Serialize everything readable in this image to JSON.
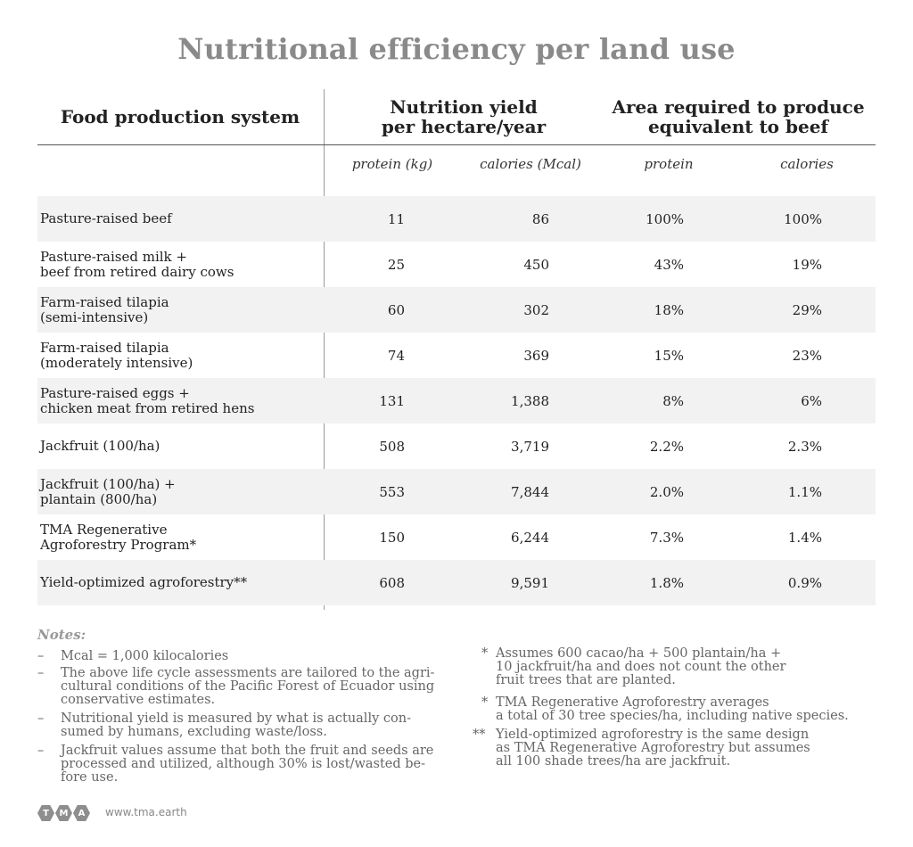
{
  "title": "Nutritional efficiency per land use",
  "headers": {
    "food": "Food production system",
    "yield": "Nutrition yield\nper hectare/year",
    "area": "Area required to produce\nequivalent to beef",
    "sub_protein": "protein (kg)",
    "sub_calories": "calories (Mcal)",
    "sub_area_protein": "protein",
    "sub_area_calories": "calories"
  },
  "rows": [
    {
      "name": "Pasture-raised beef",
      "protein": "11",
      "calories": "86",
      "area_protein": "100%",
      "area_calories": "100%"
    },
    {
      "name": "Pasture-raised milk +\nbeef from retired dairy cows",
      "protein": "25",
      "calories": "450",
      "area_protein": "43%",
      "area_calories": "19%"
    },
    {
      "name": "Farm-raised tilapia\n(semi-intensive)",
      "protein": "60",
      "calories": "302",
      "area_protein": "18%",
      "area_calories": "29%"
    },
    {
      "name": "Farm-raised tilapia\n(moderately intensive)",
      "protein": "74",
      "calories": "369",
      "area_protein": "15%",
      "area_calories": "23%"
    },
    {
      "name": "Pasture-raised eggs +\nchicken meat from retired hens",
      "protein": "131",
      "calories": "1,388",
      "area_protein": "8%",
      "area_calories": "6%"
    },
    {
      "name": "Jackfruit (100/ha)",
      "protein": "508",
      "calories": "3,719",
      "area_protein": "2.2%",
      "area_calories": "2.3%"
    },
    {
      "name": "Jackfruit (100/ha) +\nplantain (800/ha)",
      "protein": "553",
      "calories": "7,844",
      "area_protein": "2.0%",
      "area_calories": "1.1%"
    },
    {
      "name": "TMA Regenerative\nAgroforestry Program*",
      "protein": "150",
      "calories": "6,244",
      "area_protein": "7.3%",
      "area_calories": "1.4%"
    },
    {
      "name": "Yield-optimized agroforestry**",
      "protein": "608",
      "calories": "9,591",
      "area_protein": "1.8%",
      "area_calories": "0.9%"
    }
  ],
  "notes": {
    "title": "Notes:",
    "left": [
      {
        "mark": "–",
        "text": "Mcal = 1,000 kilocalories"
      },
      {
        "mark": "–",
        "text": "The above life cycle assessments are tailored to the agri-\ncultural conditions of the Pacific Forest of Ecuador using\nconservative estimates."
      },
      {
        "mark": "–",
        "text": "Nutritional yield is measured by what is actually con-\nsumed by humans, excluding waste/loss."
      },
      {
        "mark": "–",
        "text": "Jackfruit values assume that both the fruit and seeds are\nprocessed and utilized, although 30% is lost/wasted be-\nfore use."
      }
    ],
    "right": [
      {
        "mark": "*",
        "text": "Assumes 600 cacao/ha + 500 plantain/ha +\n10 jackfruit/ha and does not count the other\nfruit trees that are planted."
      },
      {
        "mark": "*",
        "text": "TMA Regenerative Agroforestry averages\na total of 30 tree species/ha, including native species."
      },
      {
        "mark": "**",
        "text": "Yield-optimized agroforestry is the same design\nas TMA Regenerative Agroforestry but assumes\nall 100 shade trees/ha are jackfruit."
      }
    ]
  },
  "footer": {
    "logo_letters": [
      "T",
      "M",
      "A"
    ],
    "website": "www.tma.earth"
  }
}
